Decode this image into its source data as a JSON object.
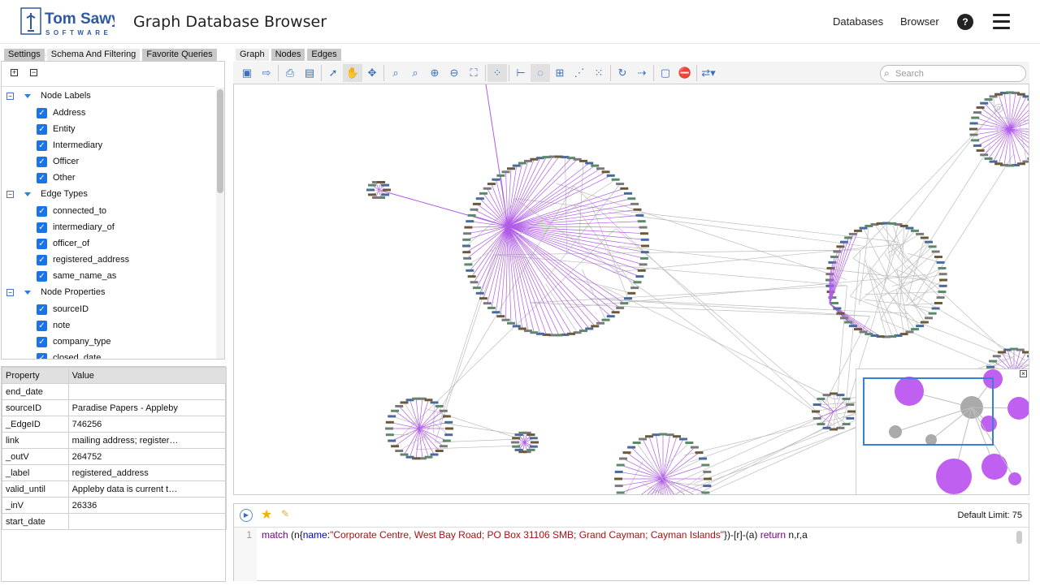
{
  "header": {
    "logo_text": "Tom Sawyer SOFTWARE",
    "title": "Graph Database Browser",
    "nav": [
      "Databases",
      "Browser"
    ],
    "help": "?"
  },
  "left_tabs": [
    "Settings",
    "Schema And Filtering",
    "Favorite Queries"
  ],
  "tree": {
    "groups": [
      {
        "label": "Node Labels",
        "items": [
          "Address",
          "Entity",
          "Intermediary",
          "Officer",
          "Other"
        ]
      },
      {
        "label": "Edge Types",
        "items": [
          "connected_to",
          "intermediary_of",
          "officer_of",
          "registered_address",
          "same_name_as"
        ]
      },
      {
        "label": "Node Properties",
        "items": [
          "sourceID",
          "note",
          "company_type",
          "closed_date"
        ]
      }
    ]
  },
  "properties": {
    "headers": [
      "Property",
      "Value"
    ],
    "rows": [
      [
        "end_date",
        ""
      ],
      [
        "sourceID",
        "Paradise Papers - Appleby"
      ],
      [
        "_EdgeID",
        "746256"
      ],
      [
        "link",
        "mailing address; register…"
      ],
      [
        "_outV",
        "264752"
      ],
      [
        "_label",
        "registered_address"
      ],
      [
        "valid_until",
        "Appleby data is current t…"
      ],
      [
        "_inV",
        "26336"
      ],
      [
        "start_date",
        ""
      ]
    ]
  },
  "main_tabs": [
    "Graph",
    "Nodes",
    "Edges"
  ],
  "toolbar": {
    "search_placeholder": "Search",
    "tools": [
      "save-graph",
      "export",
      "print",
      "print-preview",
      "select",
      "pan",
      "move",
      "zoom-marquee",
      "zoom-fit-height",
      "zoom-in",
      "zoom-out",
      "fit-to-window",
      "select-neighbors",
      "hierarchical-layout",
      "circular-layout",
      "orthogonal-layout",
      "symmetric-layout",
      "incremental-layout",
      "rotate-layout",
      "route-edges",
      "clear-selection",
      "remove",
      "more-options"
    ]
  },
  "query": {
    "default_limit": "Default Limit: 75",
    "line_number": "1",
    "tokens": [
      {
        "t": "match",
        "c": "kw"
      },
      {
        "t": " (n{",
        "c": ""
      },
      {
        "t": "name",
        "c": "prop"
      },
      {
        "t": ":",
        "c": ""
      },
      {
        "t": "\"Corporate Centre, West Bay Road; PO Box 31106 SMB; Grand Cayman; Cayman Islands\"",
        "c": "str"
      },
      {
        "t": "})-[r]-(a) ",
        "c": ""
      },
      {
        "t": "return",
        "c": "kw"
      },
      {
        "t": " n,r,a",
        "c": ""
      }
    ]
  },
  "colors": {
    "edge_highlight": "#b05ce8",
    "edge": "#bdbdbd",
    "node_fill": "#c060f0",
    "accent": "#1a73e8",
    "viewport": "#3a7fd6"
  }
}
